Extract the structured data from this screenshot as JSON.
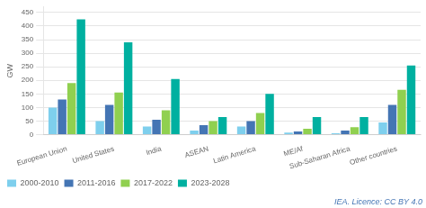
{
  "chart_data": {
    "type": "bar",
    "categories": [
      "European Union",
      "United States",
      "India",
      "ASEAN",
      "Latin America",
      "ME/Af",
      "Sub-Saharan Africa",
      "Other countries"
    ],
    "series": [
      {
        "name": "2000-2010",
        "color": "#7ecfed",
        "values": [
          100,
          50,
          30,
          15,
          30,
          8,
          5,
          45
        ]
      },
      {
        "name": "2011-2016",
        "color": "#4475b4",
        "values": [
          130,
          110,
          55,
          35,
          50,
          12,
          15,
          110
        ]
      },
      {
        "name": "2017-2022",
        "color": "#90d050",
        "values": [
          190,
          155,
          90,
          50,
          80,
          22,
          28,
          165
        ]
      },
      {
        "name": "2023-2028",
        "color": "#00b0a0",
        "values": [
          425,
          340,
          205,
          65,
          150,
          65,
          65,
          255
        ]
      }
    ],
    "y_label": "GW",
    "ylim": [
      0,
      470
    ],
    "yticks": [
      0,
      50,
      100,
      150,
      200,
      250,
      300,
      350,
      400,
      450
    ],
    "grid": true,
    "legend": "lower left",
    "annotations": [
      "IEA. Licence: CC BY 4.0"
    ]
  }
}
